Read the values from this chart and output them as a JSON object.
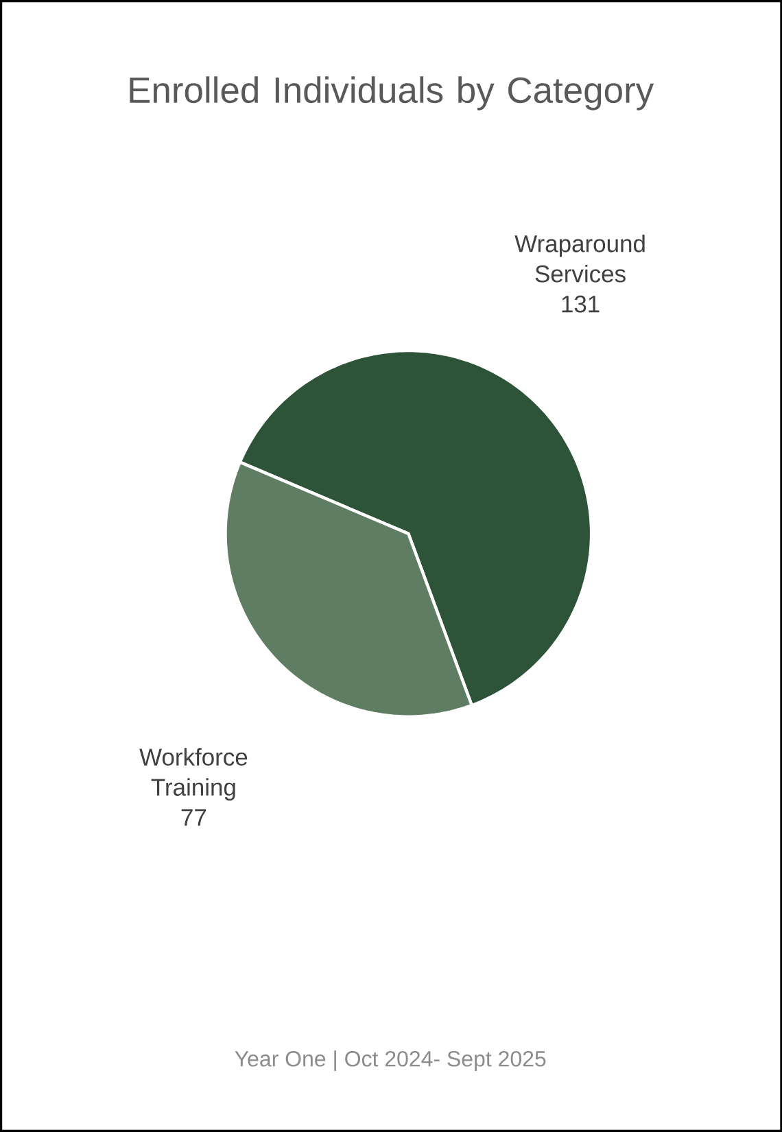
{
  "chart_data": {
    "type": "pie",
    "title": "Enrolled Individuals by Category",
    "categories": [
      "Wraparound Services",
      "Workforce Training"
    ],
    "values": [
      131,
      77
    ],
    "colors": [
      "#2d5438",
      "#5f7d62"
    ],
    "data_labels": true,
    "annotations": [
      "Year One | Oct 2024- Sept 2025"
    ]
  }
}
